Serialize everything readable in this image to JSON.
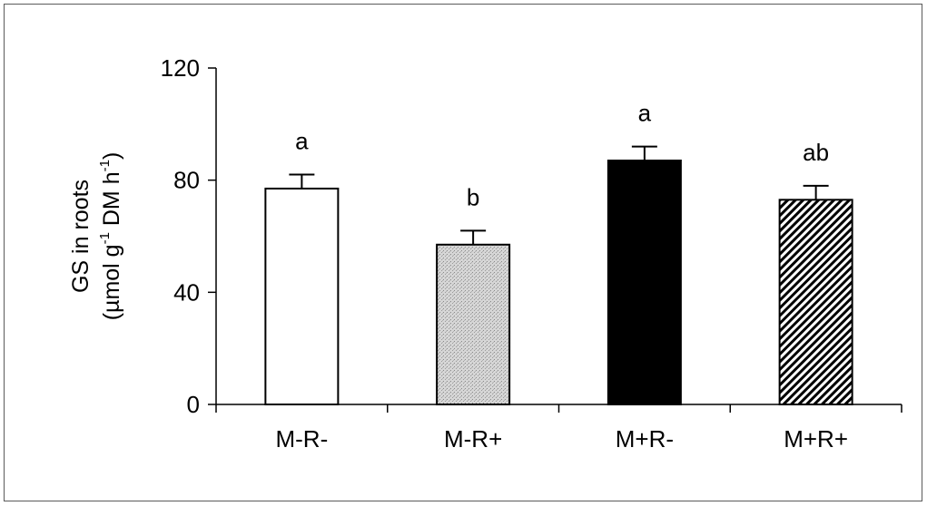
{
  "chart_data": {
    "type": "bar",
    "title": "",
    "xlabel": "",
    "ylabel": {
      "line1": "GS in roots",
      "line2_parts": [
        "(µmol g",
        "-1",
        " DM h",
        "-1",
        ")"
      ]
    },
    "ylim": [
      0,
      120
    ],
    "yticks": [
      0,
      40,
      80,
      120
    ],
    "grid": false,
    "legend": "none",
    "categories": [
      "M-R-",
      "M-R+",
      "M+R-",
      "M+R+"
    ],
    "values": [
      77,
      57,
      87,
      73
    ],
    "errors": [
      5,
      5,
      5,
      5
    ],
    "significance_labels": [
      "a",
      "b",
      "a",
      "ab"
    ],
    "bar_styles": [
      {
        "fill": "white"
      },
      {
        "fill": "stipple"
      },
      {
        "fill": "black"
      },
      {
        "fill": "diagonal-hatch"
      }
    ],
    "colors": {
      "stroke": "#000000",
      "stipple": "#c8c8c8",
      "black": "#000000"
    }
  }
}
